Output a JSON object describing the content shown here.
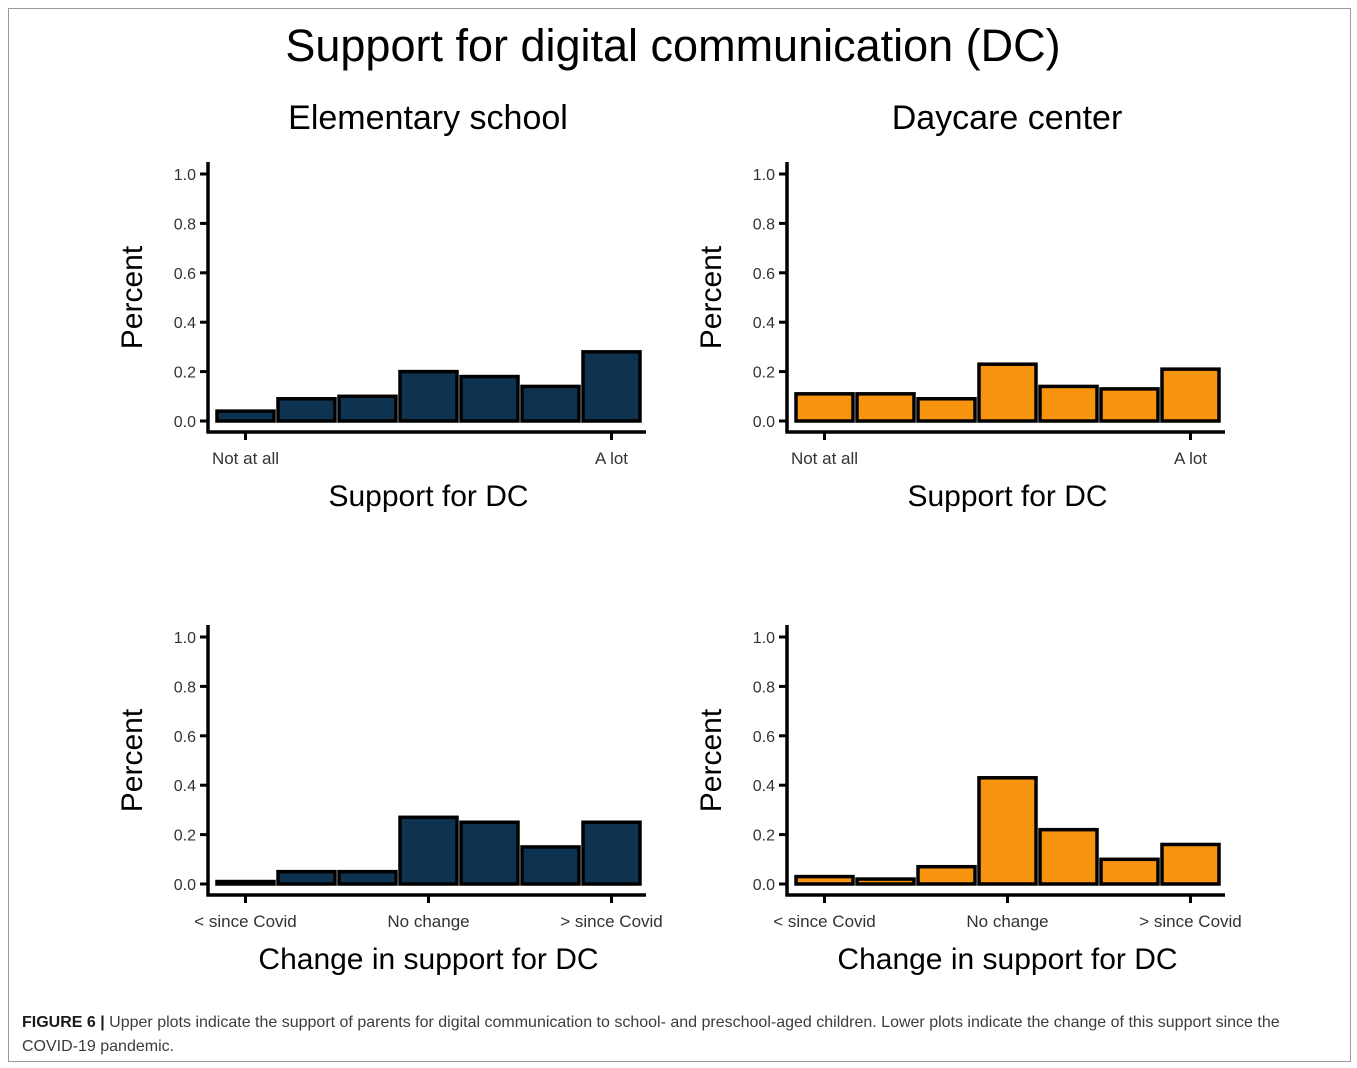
{
  "figure_title": "Support for digital communication (DC)",
  "caption": {
    "label": "FIGURE 6 |",
    "text": "Upper plots indicate the support of parents for digital communication to school- and preschool-aged children. Lower plots indicate the change of this support since the COVID-19 pandemic."
  },
  "colors": {
    "elementary": "#0e3350",
    "daycare": "#f7930f",
    "axis": "#000000"
  },
  "column_titles": [
    "Elementary school",
    "Daycare center"
  ],
  "chart_data": [
    {
      "type": "bar",
      "panel": "Elementary school",
      "xlabel": "Support for DC",
      "ylabel": "Percent",
      "ylim": [
        0,
        1
      ],
      "yticks": [
        "0.0",
        "0.2",
        "0.4",
        "0.6",
        "0.8",
        "1.0"
      ],
      "xtick_labels": [
        "Not at all",
        "A lot"
      ],
      "xtick_bars": [
        0,
        6
      ],
      "values": [
        0.04,
        0.09,
        0.1,
        0.2,
        0.18,
        0.14,
        0.28
      ],
      "color": "#0e3350"
    },
    {
      "type": "bar",
      "panel": "Daycare center",
      "xlabel": "Support for DC",
      "ylabel": "Percent",
      "ylim": [
        0,
        1
      ],
      "yticks": [
        "0.0",
        "0.2",
        "0.4",
        "0.6",
        "0.8",
        "1.0"
      ],
      "xtick_labels": [
        "Not at all",
        "A lot"
      ],
      "xtick_bars": [
        0,
        6
      ],
      "values": [
        0.11,
        0.11,
        0.09,
        0.23,
        0.14,
        0.13,
        0.21
      ],
      "color": "#f7930f"
    },
    {
      "type": "bar",
      "panel": "Elementary school",
      "xlabel": "Change in support for DC",
      "ylabel": "Percent",
      "ylim": [
        0,
        1
      ],
      "yticks": [
        "0.0",
        "0.2",
        "0.4",
        "0.6",
        "0.8",
        "1.0"
      ],
      "xtick_labels": [
        "< since Covid",
        "No change",
        "> since Covid"
      ],
      "xtick_bars": [
        0,
        3,
        6
      ],
      "values": [
        0.01,
        0.05,
        0.05,
        0.27,
        0.25,
        0.15,
        0.25
      ],
      "color": "#0e3350"
    },
    {
      "type": "bar",
      "panel": "Daycare center",
      "xlabel": "Change in support for DC",
      "ylabel": "Percent",
      "ylim": [
        0,
        1
      ],
      "yticks": [
        "0.0",
        "0.2",
        "0.4",
        "0.6",
        "0.8",
        "1.0"
      ],
      "xtick_labels": [
        "< since Covid",
        "No change",
        "> since Covid"
      ],
      "xtick_bars": [
        0,
        3,
        6
      ],
      "values": [
        0.03,
        0.02,
        0.07,
        0.43,
        0.22,
        0.1,
        0.16
      ],
      "color": "#f7930f"
    }
  ]
}
